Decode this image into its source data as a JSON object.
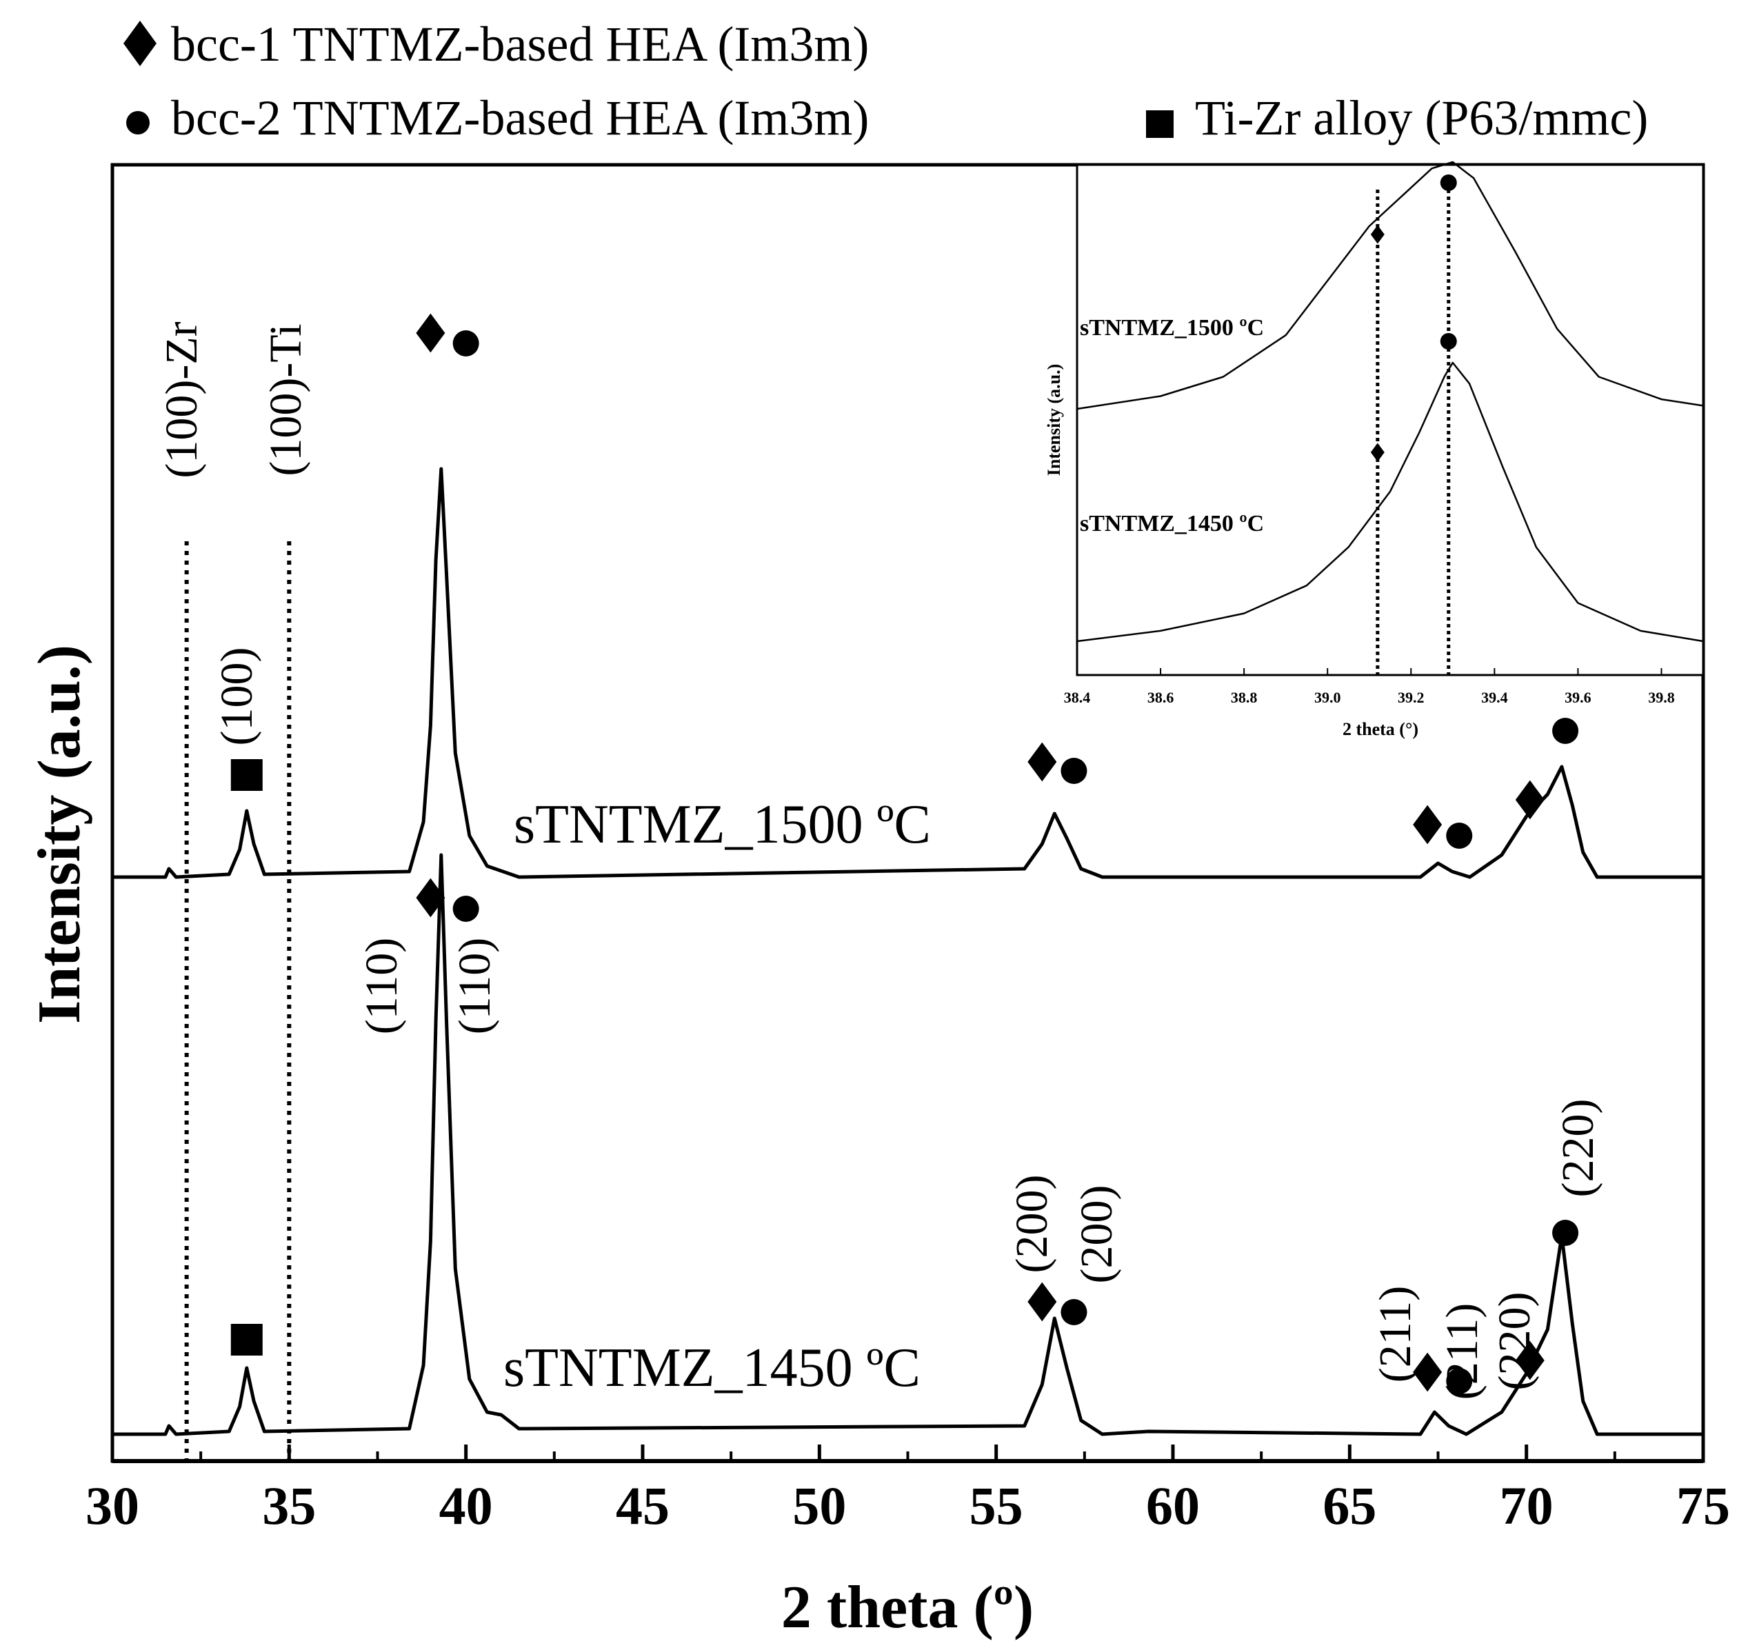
{
  "chart_data": [
    {
      "type": "line",
      "title": "",
      "xlabel": "2 theta (º)",
      "ylabel": "Intensity (a.u.)",
      "xlim": [
        30,
        75
      ],
      "xticks": [
        30,
        35,
        40,
        45,
        50,
        55,
        60,
        65,
        70,
        75
      ],
      "xtick_labels": [
        "30",
        "35",
        "40",
        "45",
        "50",
        "55",
        "60",
        "65",
        "70",
        "75"
      ],
      "grid": false,
      "legend": [
        {
          "marker": "diamond",
          "label": "bcc-1 TNTMZ-based HEA (Im3m)"
        },
        {
          "marker": "circle",
          "label": "bcc-2 TNTMZ-based HEA (Im3m)"
        },
        {
          "marker": "square",
          "label": "Ti-Zr alloy (P63/mmc)"
        }
      ],
      "series": [
        {
          "name": "sTNTMZ_1500 ºC",
          "label": "sTNTMZ_1500 ºC",
          "x": [
            30.0,
            31.5,
            31.6,
            31.8,
            33.3,
            33.6,
            33.8,
            34.0,
            34.3,
            38.4,
            38.8,
            39.0,
            39.15,
            39.3,
            39.45,
            39.7,
            40.1,
            40.6,
            41.5,
            55.8,
            56.3,
            56.65,
            57.0,
            57.4,
            58.0,
            67.0,
            67.5,
            67.9,
            68.4,
            69.3,
            70.0,
            70.6,
            71.0,
            71.3,
            71.6,
            72.0,
            75.0
          ],
          "y": [
            0.0,
            0.0,
            0.03,
            0.0,
            0.01,
            0.1,
            0.24,
            0.12,
            0.01,
            0.02,
            0.2,
            0.55,
            1.15,
            1.48,
            1.1,
            0.45,
            0.15,
            0.04,
            0.0,
            0.03,
            0.12,
            0.23,
            0.14,
            0.03,
            0.0,
            0.0,
            0.05,
            0.02,
            0.0,
            0.08,
            0.22,
            0.3,
            0.4,
            0.26,
            0.09,
            0.0,
            0.0
          ]
        },
        {
          "name": "sTNTMZ_1450 ºC",
          "label": "sTNTMZ_1450 ºC",
          "x": [
            30.0,
            31.5,
            31.6,
            31.8,
            33.3,
            33.6,
            33.8,
            34.0,
            34.3,
            38.4,
            38.8,
            39.0,
            39.15,
            39.3,
            39.45,
            39.7,
            40.1,
            40.6,
            41.0,
            41.5,
            55.8,
            56.3,
            56.65,
            57.0,
            57.4,
            58.0,
            59.3,
            67.0,
            67.4,
            67.8,
            68.3,
            69.3,
            70.0,
            70.6,
            71.0,
            71.3,
            71.6,
            72.0,
            75.0
          ],
          "y": [
            0.0,
            0.0,
            0.03,
            0.0,
            0.01,
            0.1,
            0.24,
            0.12,
            0.01,
            0.02,
            0.25,
            0.7,
            1.5,
            2.1,
            1.5,
            0.6,
            0.2,
            0.08,
            0.07,
            0.02,
            0.03,
            0.18,
            0.42,
            0.24,
            0.05,
            0.0,
            0.01,
            0.0,
            0.08,
            0.03,
            0.0,
            0.08,
            0.22,
            0.38,
            0.72,
            0.4,
            0.12,
            0.0,
            0.0
          ]
        }
      ],
      "reference_lines": [
        {
          "x": 32.1,
          "label": "(100)-Zr"
        },
        {
          "x": 35.0,
          "label": "(100)-Ti"
        }
      ],
      "annotations": [
        {
          "text": "(100)",
          "x": 33.8,
          "phase": "Ti-Zr alloy"
        },
        {
          "text": "(110)",
          "x": 39.0,
          "phase": "bcc-1"
        },
        {
          "text": "(110)",
          "x": 40.1,
          "phase": "bcc-2"
        },
        {
          "text": "(200)",
          "x": 56.5,
          "phase": "bcc-1"
        },
        {
          "text": "(200)",
          "x": 57.5,
          "phase": "bcc-2"
        },
        {
          "text": "(211)",
          "x": 67.3,
          "phase": "bcc-1"
        },
        {
          "text": "(211)",
          "x": 68.3,
          "phase": "bcc-2"
        },
        {
          "text": "(220)",
          "x": 70.0,
          "phase": "bcc-1"
        },
        {
          "text": "(220)",
          "x": 71.2,
          "phase": "bcc-2"
        }
      ]
    },
    {
      "type": "line",
      "title": "inset",
      "xlabel": "2 theta (°)",
      "ylabel": "Intensity (a.u.)",
      "xlim": [
        38.4,
        39.9
      ],
      "xticks": [
        38.4,
        38.6,
        38.8,
        39.0,
        39.2,
        39.4,
        39.6,
        39.8
      ],
      "xtick_labels": [
        "38.4",
        "38.6",
        "38.8",
        "39.0",
        "39.2",
        "39.4",
        "39.6",
        "39.8"
      ],
      "reference_lines": [
        {
          "x": 39.12,
          "marker": "diamond"
        },
        {
          "x": 39.29,
          "marker": "circle"
        }
      ],
      "series": [
        {
          "name": "sTNTMZ_1500 ºC",
          "label": "sTNTMZ_1500 ºC",
          "x": [
            38.4,
            38.6,
            38.75,
            38.9,
            39.0,
            39.1,
            39.2,
            39.25,
            39.3,
            39.35,
            39.45,
            39.55,
            39.65,
            39.8,
            39.9
          ],
          "y": [
            0.23,
            0.27,
            0.33,
            0.46,
            0.63,
            0.8,
            0.92,
            0.98,
            1.0,
            0.95,
            0.72,
            0.48,
            0.33,
            0.26,
            0.24
          ]
        },
        {
          "name": "sTNTMZ_1450 ºC",
          "label": "sTNTMZ_1450 ºC",
          "x": [
            38.4,
            38.6,
            38.8,
            38.95,
            39.05,
            39.15,
            39.22,
            39.28,
            39.3,
            39.34,
            39.42,
            39.5,
            39.6,
            39.75,
            39.9
          ],
          "y": [
            0.0,
            0.03,
            0.08,
            0.16,
            0.27,
            0.43,
            0.6,
            0.76,
            0.8,
            0.74,
            0.5,
            0.27,
            0.11,
            0.03,
            0.0
          ]
        }
      ]
    }
  ],
  "colors": {
    "line": "#000000",
    "background": "#ffffff"
  }
}
